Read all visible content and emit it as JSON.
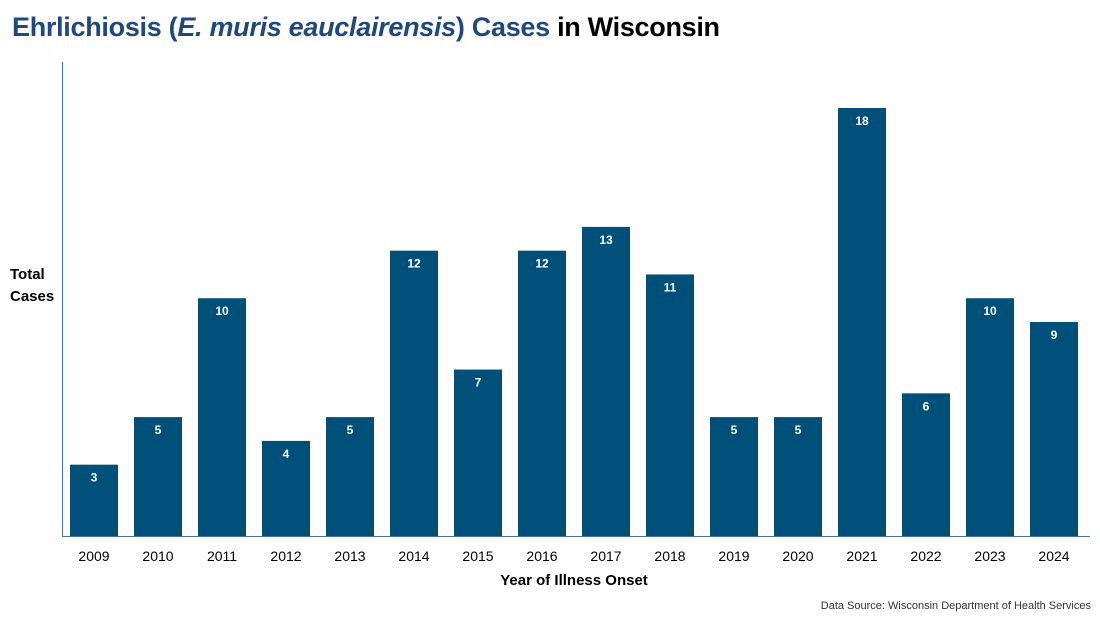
{
  "chart_data": {
    "type": "bar",
    "title_parts": {
      "prefix": "Ehrlichiosis (",
      "italic": "E. muris eauclairensis",
      "mid": ") Cases",
      "suffix": " in Wisconsin"
    },
    "ylabel_lines": [
      "Total",
      "Cases"
    ],
    "xlabel": "Year of Illness Onset",
    "categories": [
      "2009",
      "2010",
      "2011",
      "2012",
      "2013",
      "2014",
      "2015",
      "2016",
      "2017",
      "2018",
      "2019",
      "2020",
      "2021",
      "2022",
      "2023",
      "2024"
    ],
    "values": [
      3,
      5,
      10,
      4,
      5,
      12,
      7,
      12,
      13,
      11,
      5,
      5,
      18,
      6,
      10,
      9
    ],
    "ylim": [
      0,
      18
    ],
    "grid": false,
    "source": "Data Source: Wisconsin Department of Health Services",
    "colors": {
      "bar": "#00507a",
      "title_accent": "#1f497d",
      "axis": "#4a6fa5"
    }
  }
}
